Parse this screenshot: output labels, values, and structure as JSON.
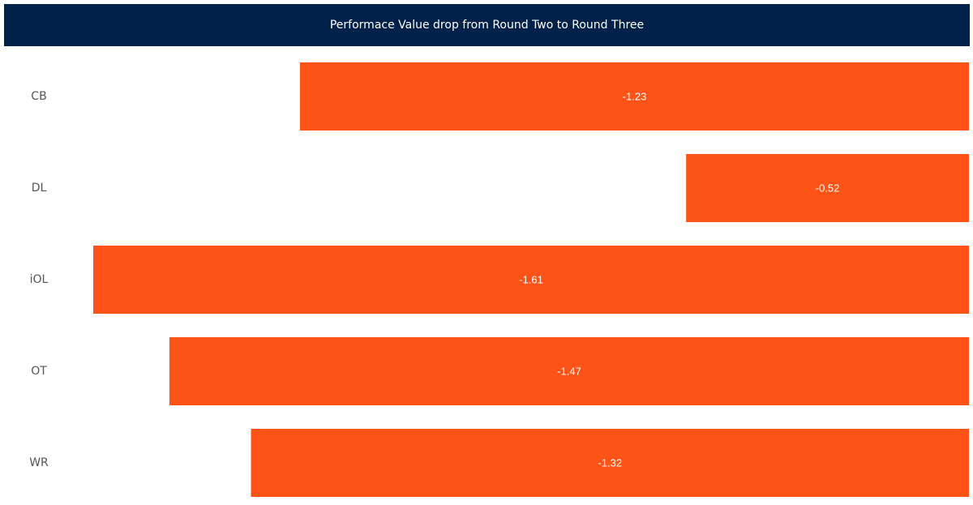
{
  "chart_data": {
    "type": "bar",
    "orientation": "horizontal",
    "title": "Performace Value drop from Round Two to Round Three",
    "categories": [
      "CB",
      "DL",
      "iOL",
      "OT",
      "WR"
    ],
    "values": [
      -1.23,
      -0.52,
      -1.61,
      -1.47,
      -1.32
    ],
    "value_labels": [
      "-1.23",
      "-0.52",
      "-1.61",
      "-1.47",
      "-1.32"
    ],
    "xlim": [
      -1.7,
      0
    ],
    "bar_color": "#fe5316",
    "header_color": "#00224a",
    "grid": false,
    "legend": "none"
  }
}
